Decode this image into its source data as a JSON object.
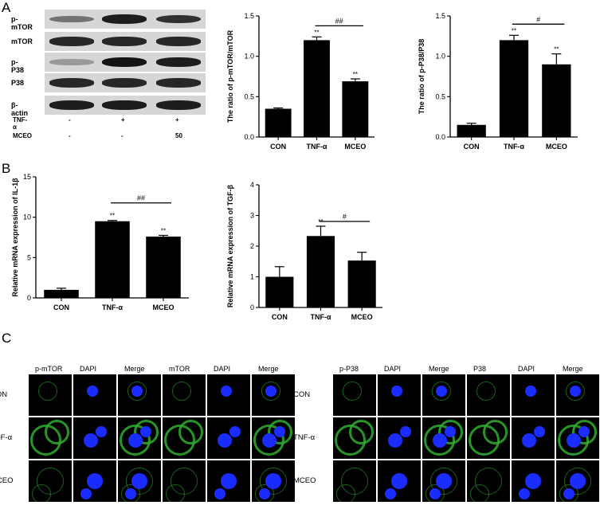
{
  "panels": {
    "A": "A",
    "B": "B",
    "C": "C"
  },
  "western_blot": {
    "rows": [
      "p-mTOR",
      "mTOR",
      "p-P38",
      "P38",
      "β-actin"
    ],
    "conditions": [
      {
        "label": "TNF-α",
        "values": [
          "-",
          "+",
          "+"
        ]
      },
      {
        "label": "MCEO",
        "values": [
          "-",
          "-",
          "50"
        ]
      }
    ],
    "band_intensity": {
      "p-mTOR": [
        0.45,
        0.9,
        0.8
      ],
      "mTOR": [
        0.85,
        0.85,
        0.85
      ],
      "p-P38": [
        0.25,
        0.95,
        0.9
      ],
      "P38": [
        0.85,
        0.85,
        0.85
      ],
      "β-actin": [
        0.9,
        0.9,
        0.9
      ]
    }
  },
  "chart_data": [
    {
      "type": "bar",
      "categories": [
        "CON",
        "TNF-α",
        "MCEO"
      ],
      "values": [
        0.35,
        1.2,
        0.69
      ],
      "errors": [
        0.01,
        0.04,
        0.03
      ],
      "significance": [
        "",
        "**",
        "**"
      ],
      "comparison": {
        "from": 1,
        "to": 2,
        "label": "##"
      },
      "ylabel": "The ratio of p-mTOR/mTOR",
      "ylim": [
        0,
        1.5
      ],
      "yticks": [
        "0.0",
        "0.5",
        "1.0",
        "1.5"
      ]
    },
    {
      "type": "bar",
      "categories": [
        "CON",
        "TNF-α",
        "MCEO"
      ],
      "values": [
        0.15,
        1.2,
        0.9
      ],
      "errors": [
        0.02,
        0.06,
        0.13
      ],
      "significance": [
        "",
        "**",
        "**"
      ],
      "comparison": {
        "from": 1,
        "to": 2,
        "label": "#"
      },
      "ylabel": "The ratio of p-P38/P38",
      "ylim": [
        0,
        1.5
      ],
      "yticks": [
        "0.0",
        "0.5",
        "1.0",
        "1.5"
      ]
    },
    {
      "type": "bar",
      "categories": [
        "CON",
        "TNF-α",
        "MCEO"
      ],
      "values": [
        1.0,
        9.5,
        7.6
      ],
      "errors": [
        0.2,
        0.1,
        0.15
      ],
      "significance": [
        "",
        "**",
        "**"
      ],
      "comparison": {
        "from": 1,
        "to": 2,
        "label": "##"
      },
      "ylabel": "Relative mRNA expression of IL-1β",
      "ylim": [
        0,
        15
      ],
      "yticks": [
        "0",
        "5",
        "10",
        "15"
      ]
    },
    {
      "type": "bar",
      "categories": [
        "CON",
        "TNF-α",
        "MCEO"
      ],
      "values": [
        1.0,
        2.33,
        1.53
      ],
      "errors": [
        0.33,
        0.32,
        0.27
      ],
      "significance": [
        "",
        "**",
        ""
      ],
      "comparison": {
        "from": 1,
        "to": 2,
        "label": "#"
      },
      "ylabel": "Relative mRNA expression of TGF-β",
      "ylim": [
        0,
        4
      ],
      "yticks": [
        "0",
        "1",
        "2",
        "3",
        "4"
      ]
    }
  ],
  "microscopy": {
    "left": {
      "headers": [
        "p-mTOR",
        "DAPI",
        "Merge",
        "mTOR",
        "DAPI",
        "Merge"
      ],
      "rows": [
        "CON",
        "TNF-α",
        "MCEO"
      ]
    },
    "right": {
      "headers": [
        "p-P38",
        "DAPI",
        "Merge",
        "P38",
        "DAPI",
        "Merge"
      ],
      "rows": [
        "CON",
        "TNF-α",
        "MCEO"
      ]
    },
    "colors": {
      "green": "#2fae2f",
      "blue": "#1a2cff",
      "background": "#000000"
    }
  }
}
